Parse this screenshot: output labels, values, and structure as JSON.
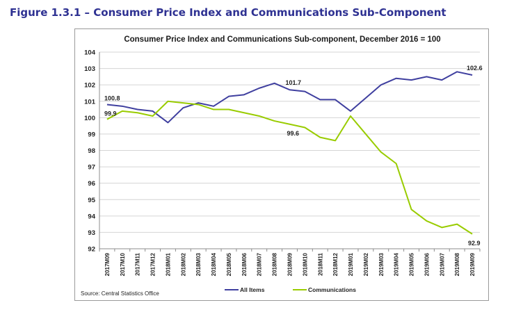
{
  "figure": {
    "title": "Figure 1.3.1 – Consumer Price Index and Communications Sub-Component",
    "source": "Source: Central Statistics Office"
  },
  "colors": {
    "all_items": "#3f3f9f",
    "communications": "#99cc00"
  },
  "chart_data": {
    "type": "line",
    "title": "Consumer Price Index and Communications Sub-component, December 2016 = 100",
    "xlabel": "",
    "ylabel": "",
    "ylim": [
      92,
      104
    ],
    "yticks": [
      92,
      93,
      94,
      95,
      96,
      97,
      98,
      99,
      100,
      101,
      102,
      103,
      104
    ],
    "grid": true,
    "legend": "bottom",
    "x": [
      "2017M09",
      "2017M10",
      "2017M11",
      "2017M12",
      "2018M01",
      "2018M02",
      "2018M03",
      "2018M04",
      "2018M05",
      "2018M06",
      "2018M07",
      "2018M08",
      "2018M09",
      "2018M10",
      "2018M11",
      "2018M12",
      "2019M01",
      "2019M02",
      "2019M03",
      "2019M04",
      "2019M05",
      "2019M06",
      "2019M07",
      "2019M08",
      "2019M09"
    ],
    "series": [
      {
        "name": "All Items",
        "values": [
          100.8,
          100.7,
          100.5,
          100.4,
          99.7,
          100.6,
          100.9,
          100.7,
          101.3,
          101.4,
          101.8,
          102.1,
          101.7,
          101.6,
          101.1,
          101.1,
          100.4,
          101.2,
          102.0,
          102.4,
          102.3,
          102.5,
          102.3,
          102.8,
          102.6
        ]
      },
      {
        "name": "Communications",
        "values": [
          99.9,
          100.4,
          100.3,
          100.1,
          101.0,
          100.9,
          100.8,
          100.5,
          100.5,
          100.3,
          100.1,
          99.8,
          99.6,
          99.4,
          98.8,
          98.6,
          100.1,
          99.0,
          97.9,
          97.2,
          94.4,
          93.7,
          93.3,
          93.5,
          92.9
        ]
      }
    ],
    "annotations": [
      {
        "series": 0,
        "index": 0,
        "text": "100.8"
      },
      {
        "series": 1,
        "index": 0,
        "text": "99.9"
      },
      {
        "series": 0,
        "index": 12,
        "text": "101.7"
      },
      {
        "series": 1,
        "index": 12,
        "text": "99.6"
      },
      {
        "series": 0,
        "index": 24,
        "text": "102.6"
      },
      {
        "series": 1,
        "index": 24,
        "text": "92.9"
      }
    ]
  }
}
